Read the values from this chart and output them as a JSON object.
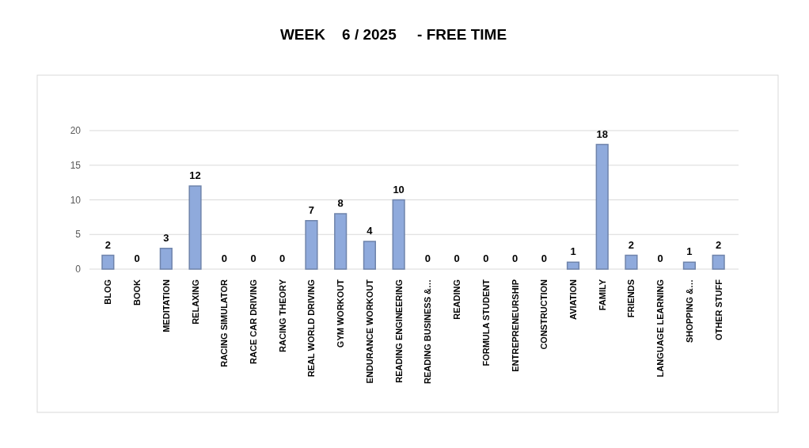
{
  "chart_data": {
    "type": "bar",
    "title": "WEEK    6 / 2025     - FREE TIME",
    "categories": [
      "BLOG",
      "BOOK",
      "MEDITATION",
      "RELAXING",
      "RACING SIMULATOR",
      "RACE CAR DRIVING",
      "RACING THEORY",
      "REAL WORLD DRIVING",
      "GYM WORKOUT",
      "ENDURANCE WORKOUT",
      "READING ENGINEERING",
      "READING BUSINESS &…",
      "READING",
      "FORMULA STUDENT",
      "ENTREPRENEURSHIP",
      "CONSTRUCTION",
      "AVIATION",
      "FAMILY",
      "FRIENDS",
      "LANGUAGE LEARNING",
      "SHOPPING &…",
      "OTHER STUFF"
    ],
    "values": [
      2,
      0,
      3,
      12,
      0,
      0,
      0,
      7,
      8,
      4,
      10,
      0,
      0,
      0,
      0,
      0,
      1,
      18,
      2,
      0,
      1,
      2
    ],
    "color": "#8faadc",
    "ylim": [
      0,
      20
    ],
    "yticks": [
      0,
      5,
      10,
      15,
      20
    ],
    "grid": "y",
    "data_labels": true
  }
}
